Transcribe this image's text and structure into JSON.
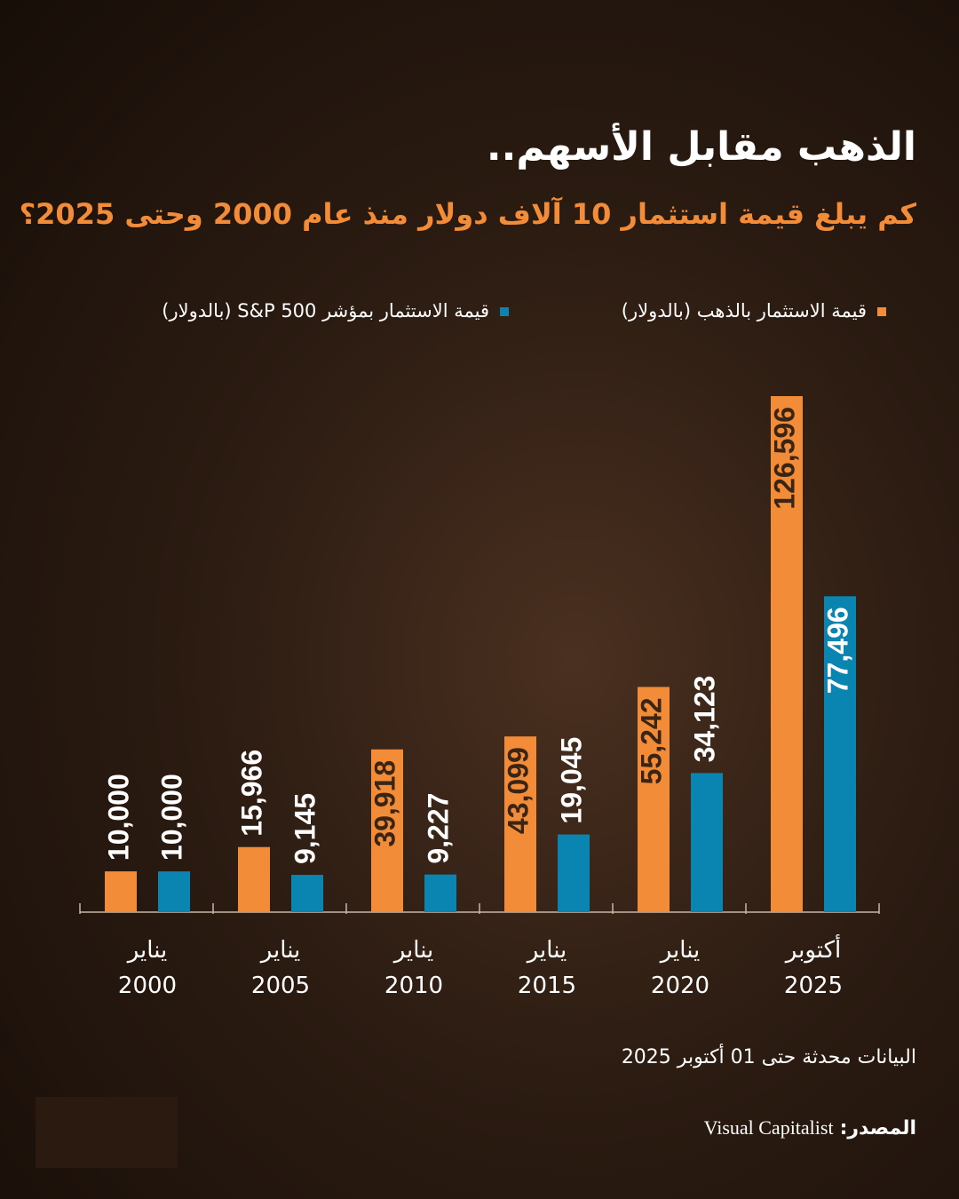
{
  "chart_data": {
    "type": "bar",
    "title": "الذهب مقابل الأسهم..",
    "subtitle": "كم يبلغ قيمة استثمار 10 آلاف دولار منذ عام 2000 وحتى 2025؟",
    "categories": [
      "يناير\n2000",
      "يناير\n2005",
      "يناير\n2010",
      "يناير\n2015",
      "يناير\n2020",
      "أكتوبر\n2025"
    ],
    "series": [
      {
        "name": "قيمة الاستثمار بالذهب (بالدولار)",
        "color": "#f28c38",
        "values": [
          10000,
          15966,
          39918,
          43099,
          55242,
          126596
        ],
        "value_labels": [
          "10,000",
          "15,966",
          "39,918",
          "43,099",
          "55,242",
          "126,596"
        ]
      },
      {
        "name": "قيمة الاستثمار بمؤشر S&P 500 (بالدولار)",
        "color": "#0a84b0",
        "values": [
          10000,
          9145,
          9227,
          19045,
          34123,
          77496
        ],
        "value_labels": [
          "10,000",
          "9,145",
          "9,227",
          "19,045",
          "34,123",
          "77,496"
        ]
      }
    ],
    "note": "البيانات محدثة حتى 01 أكتوبر 2025",
    "source_label": "المصدر:",
    "source_name": "Visual Capitalist"
  }
}
